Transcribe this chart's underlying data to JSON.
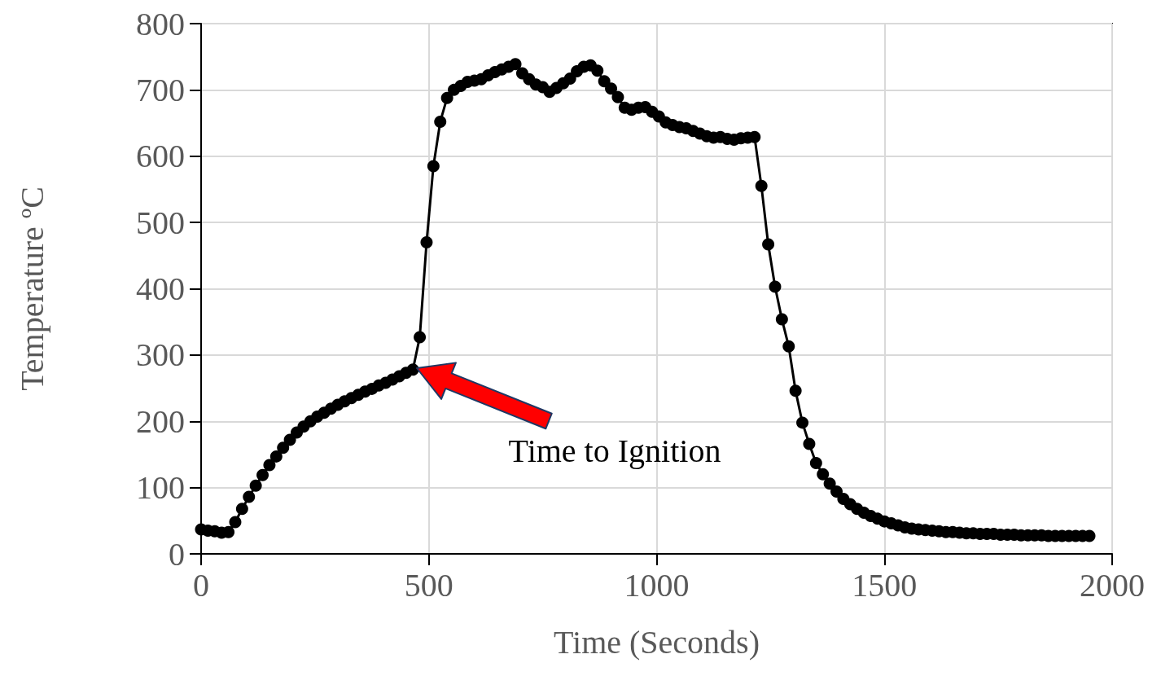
{
  "chart_data": {
    "type": "line",
    "xlabel": "Time (Seconds)",
    "ylabel": "Temperature ºC",
    "xlim": [
      0,
      2000
    ],
    "xticks": [
      0,
      500,
      1000,
      1500,
      2000
    ],
    "ylim": [
      0,
      800
    ],
    "yticks": [
      0,
      100,
      200,
      300,
      400,
      500,
      600,
      700,
      800
    ],
    "grid": true,
    "marker": "circle",
    "line_style": "solid",
    "annotations": [
      "Time to Ignition"
    ],
    "series": [
      {
        "color": "#000000",
        "x": [
          0,
          15,
          30,
          45,
          60,
          75,
          90,
          105,
          120,
          135,
          150,
          165,
          180,
          195,
          210,
          225,
          240,
          255,
          270,
          285,
          300,
          315,
          330,
          345,
          360,
          375,
          390,
          405,
          420,
          435,
          450,
          465,
          480,
          495,
          510,
          525,
          540,
          555,
          570,
          585,
          600,
          615,
          630,
          645,
          660,
          675,
          690,
          705,
          720,
          735,
          750,
          765,
          780,
          795,
          810,
          825,
          840,
          855,
          870,
          885,
          900,
          915,
          930,
          945,
          960,
          975,
          990,
          1005,
          1020,
          1035,
          1050,
          1065,
          1080,
          1095,
          1110,
          1125,
          1140,
          1155,
          1170,
          1185,
          1200,
          1215,
          1230,
          1245,
          1260,
          1275,
          1290,
          1305,
          1320,
          1335,
          1350,
          1365,
          1380,
          1395,
          1410,
          1425,
          1440,
          1455,
          1470,
          1485,
          1500,
          1515,
          1530,
          1545,
          1560,
          1575,
          1590,
          1605,
          1620,
          1635,
          1650,
          1665,
          1680,
          1695,
          1710,
          1725,
          1740,
          1755,
          1770,
          1785,
          1800,
          1815,
          1830,
          1845,
          1860,
          1875,
          1890,
          1905,
          1920,
          1935,
          1950
        ],
        "values": [
          37,
          35,
          34,
          32,
          33,
          48,
          68,
          86,
          103,
          119,
          134,
          147,
          160,
          172,
          183,
          192,
          200,
          207,
          213,
          219,
          225,
          230,
          235,
          240,
          245,
          249,
          254,
          258,
          263,
          268,
          273,
          278,
          327,
          470,
          585,
          652,
          688,
          700,
          706,
          712,
          714,
          716,
          722,
          727,
          731,
          735,
          739,
          725,
          716,
          708,
          704,
          697,
          703,
          710,
          717,
          728,
          735,
          737,
          729,
          713,
          702,
          689,
          673,
          670,
          673,
          674,
          667,
          660,
          651,
          647,
          644,
          642,
          638,
          634,
          630,
          628,
          629,
          626,
          625,
          627,
          628,
          629,
          555,
          467,
          403,
          354,
          313,
          246,
          198,
          166,
          137,
          120,
          106,
          94,
          83,
          75,
          68,
          62,
          57,
          53,
          49,
          46,
          43,
          40,
          38,
          37,
          36,
          35,
          34,
          33,
          33,
          32,
          31,
          31,
          30,
          30,
          30,
          29,
          29,
          29,
          28,
          28,
          28,
          28,
          27,
          27,
          27,
          27,
          27,
          27,
          27
        ]
      }
    ]
  }
}
